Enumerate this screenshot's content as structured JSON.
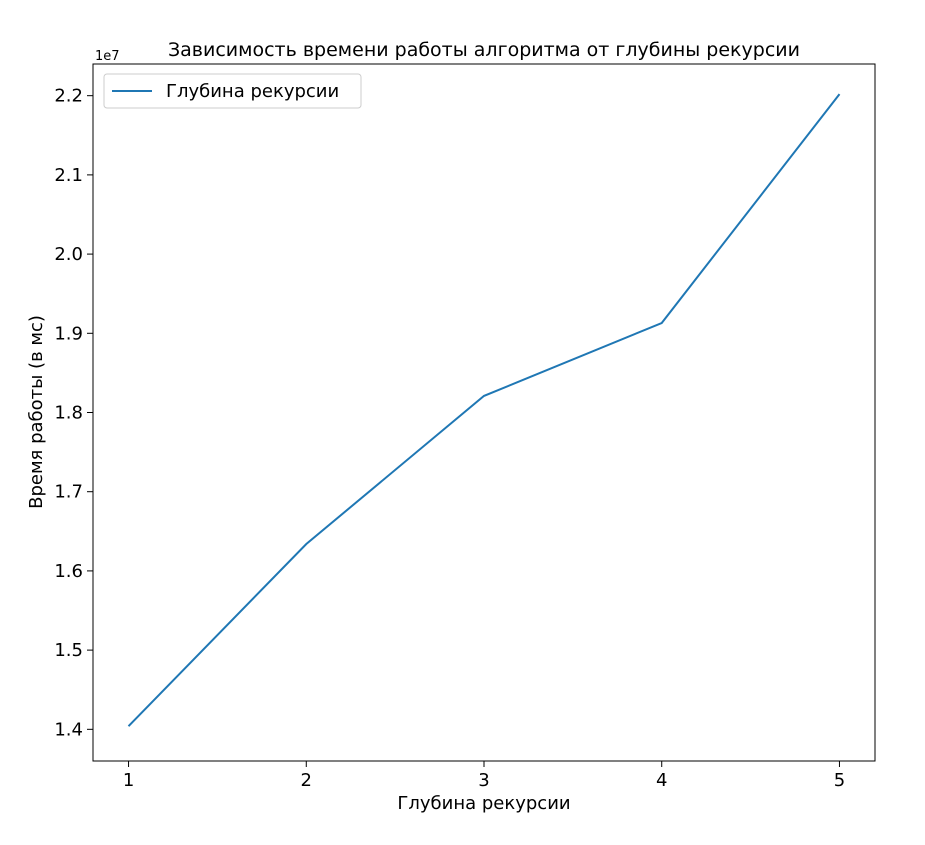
{
  "chart_data": {
    "type": "line",
    "title": "Зависимость времени работы алгоритма от глубины рекурсии",
    "xlabel": "Глубина рекурсии",
    "ylabel": "Время работы (в мс)",
    "y_offset_label": "1e7",
    "x_ticks": [
      1,
      2,
      3,
      4,
      5
    ],
    "x_tick_labels": [
      "1",
      "2",
      "3",
      "4",
      "5"
    ],
    "y_ticks": [
      1.4,
      1.5,
      1.6,
      1.7,
      1.8,
      1.9,
      2.0,
      2.1,
      2.2
    ],
    "y_tick_labels": [
      "1.4",
      "1.5",
      "1.6",
      "1.7",
      "1.8",
      "1.9",
      "2.0",
      "2.1",
      "2.2"
    ],
    "xlim": [
      0.8,
      5.2
    ],
    "ylim": [
      1.36,
      2.24
    ],
    "grid": false,
    "legend_position": "top-left",
    "series": [
      {
        "name": "Глубина рекурсии",
        "color": "#1f77b4",
        "x": [
          1,
          2,
          3,
          4,
          5
        ],
        "y": [
          1.404,
          1.634,
          1.821,
          1.913,
          2.202
        ]
      }
    ]
  }
}
